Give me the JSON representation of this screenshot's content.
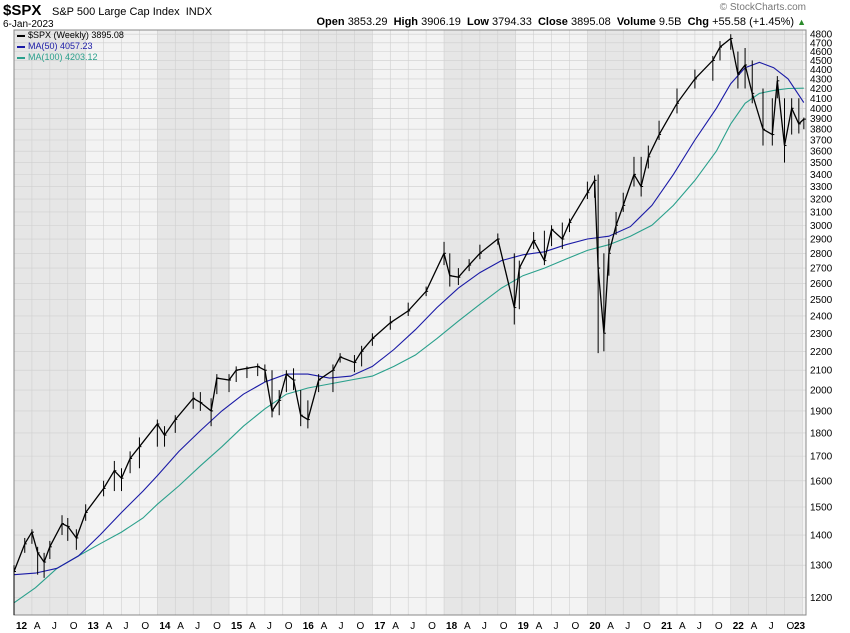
{
  "header": {
    "symbol": "$SPX",
    "name": "S&P 500 Large Cap Index",
    "exchange": "INDX",
    "date": "6-Jan-2023",
    "brand": "© StockCharts.com",
    "open_label": "Open",
    "open": "3853.29",
    "high_label": "High",
    "high": "3906.19",
    "low_label": "Low",
    "low": "3794.33",
    "close_label": "Close",
    "close": "3895.08",
    "volume_label": "Volume",
    "volume": "9.5B",
    "chg_label": "Chg",
    "chg": "+55.58 (+1.45%)"
  },
  "legend": [
    {
      "text": "$SPX (Weekly) 3895.08",
      "color": "#000000"
    },
    {
      "text": "MA(50) 4057.23",
      "color": "#1a1aa6"
    },
    {
      "text": "MA(100) 4203.12",
      "color": "#2aa08c"
    }
  ],
  "colors": {
    "price": "#000000",
    "ma50": "#1a1aa6",
    "ma100": "#2aa08c",
    "band_a": "#e6e6e6",
    "band_b": "#f3f3f3",
    "grid": "#cfcfcf"
  },
  "chart_data": {
    "type": "line",
    "title": "$SPX S&P 500 Large Cap Index",
    "y_scale": "log",
    "ylim": [
      1150,
      4850
    ],
    "xlim": [
      2012.0,
      2023.05
    ],
    "grid": true,
    "legend_position": "top-left",
    "y_ticks": [
      1200,
      1300,
      1400,
      1500,
      1600,
      1700,
      1800,
      1900,
      2000,
      2100,
      2200,
      2300,
      2400,
      2500,
      2600,
      2700,
      2800,
      2900,
      3000,
      3100,
      3200,
      3300,
      3400,
      3500,
      3600,
      3700,
      3800,
      3900,
      4000,
      4100,
      4200,
      4300,
      4400,
      4500,
      4600,
      4700,
      4800
    ],
    "x_ticks": [
      {
        "x": 2012.0,
        "label": "12",
        "year": true
      },
      {
        "x": 2012.25,
        "label": "A"
      },
      {
        "x": 2012.5,
        "label": "J"
      },
      {
        "x": 2012.75,
        "label": "O"
      },
      {
        "x": 2013.0,
        "label": "13",
        "year": true
      },
      {
        "x": 2013.25,
        "label": "A"
      },
      {
        "x": 2013.5,
        "label": "J"
      },
      {
        "x": 2013.75,
        "label": "O"
      },
      {
        "x": 2014.0,
        "label": "14",
        "year": true
      },
      {
        "x": 2014.25,
        "label": "A"
      },
      {
        "x": 2014.5,
        "label": "J"
      },
      {
        "x": 2014.75,
        "label": "O"
      },
      {
        "x": 2015.0,
        "label": "15",
        "year": true
      },
      {
        "x": 2015.25,
        "label": "A"
      },
      {
        "x": 2015.5,
        "label": "J"
      },
      {
        "x": 2015.75,
        "label": "O"
      },
      {
        "x": 2016.0,
        "label": "16",
        "year": true
      },
      {
        "x": 2016.25,
        "label": "A"
      },
      {
        "x": 2016.5,
        "label": "J"
      },
      {
        "x": 2016.75,
        "label": "O"
      },
      {
        "x": 2017.0,
        "label": "17",
        "year": true
      },
      {
        "x": 2017.25,
        "label": "A"
      },
      {
        "x": 2017.5,
        "label": "J"
      },
      {
        "x": 2017.75,
        "label": "O"
      },
      {
        "x": 2018.0,
        "label": "18",
        "year": true
      },
      {
        "x": 2018.25,
        "label": "A"
      },
      {
        "x": 2018.5,
        "label": "J"
      },
      {
        "x": 2018.75,
        "label": "O"
      },
      {
        "x": 2019.0,
        "label": "19",
        "year": true
      },
      {
        "x": 2019.25,
        "label": "A"
      },
      {
        "x": 2019.5,
        "label": "J"
      },
      {
        "x": 2019.75,
        "label": "O"
      },
      {
        "x": 2020.0,
        "label": "20",
        "year": true
      },
      {
        "x": 2020.25,
        "label": "A"
      },
      {
        "x": 2020.5,
        "label": "J"
      },
      {
        "x": 2020.75,
        "label": "O"
      },
      {
        "x": 2021.0,
        "label": "21",
        "year": true
      },
      {
        "x": 2021.25,
        "label": "A"
      },
      {
        "x": 2021.5,
        "label": "J"
      },
      {
        "x": 2021.75,
        "label": "O"
      },
      {
        "x": 2022.0,
        "label": "22",
        "year": true
      },
      {
        "x": 2022.25,
        "label": "A"
      },
      {
        "x": 2022.5,
        "label": "J"
      },
      {
        "x": 2022.75,
        "label": "O"
      },
      {
        "x": 2023.0,
        "label": "23",
        "year": true
      }
    ],
    "series": [
      {
        "name": "$SPX (Weekly)",
        "style": "ohlc",
        "x": [
          2012.0,
          2012.15,
          2012.25,
          2012.33,
          2012.42,
          2012.5,
          2012.67,
          2012.75,
          2012.87,
          2013.0,
          2013.25,
          2013.4,
          2013.5,
          2013.62,
          2013.75,
          2014.0,
          2014.1,
          2014.25,
          2014.5,
          2014.6,
          2014.75,
          2014.83,
          2015.0,
          2015.1,
          2015.25,
          2015.4,
          2015.5,
          2015.6,
          2015.7,
          2015.8,
          2015.9,
          2016.0,
          2016.1,
          2016.25,
          2016.45,
          2016.55,
          2016.75,
          2016.85,
          2017.0,
          2017.25,
          2017.5,
          2017.75,
          2018.0,
          2018.08,
          2018.2,
          2018.35,
          2018.5,
          2018.75,
          2018.98,
          2019.05,
          2019.25,
          2019.4,
          2019.5,
          2019.65,
          2019.75,
          2020.0,
          2020.1,
          2020.15,
          2020.23,
          2020.3,
          2020.4,
          2020.5,
          2020.65,
          2020.75,
          2020.85,
          2021.0,
          2021.25,
          2021.5,
          2021.75,
          2021.85,
          2022.0,
          2022.1,
          2022.2,
          2022.3,
          2022.45,
          2022.58,
          2022.65,
          2022.75,
          2022.85,
          2022.95,
          2023.02
        ],
        "values": [
          1280,
          1370,
          1410,
          1340,
          1310,
          1360,
          1440,
          1430,
          1390,
          1480,
          1570,
          1640,
          1610,
          1690,
          1740,
          1840,
          1790,
          1860,
          1960,
          1940,
          1900,
          2060,
          2050,
          2100,
          2110,
          2120,
          2100,
          1900,
          1950,
          2080,
          2050,
          1880,
          1860,
          2050,
          2100,
          2170,
          2140,
          2200,
          2270,
          2360,
          2430,
          2550,
          2800,
          2650,
          2640,
          2720,
          2800,
          2900,
          2450,
          2700,
          2890,
          2750,
          2970,
          2900,
          3020,
          3250,
          3350,
          2700,
          2300,
          2800,
          3000,
          3150,
          3400,
          3300,
          3550,
          3750,
          4050,
          4300,
          4500,
          4650,
          4750,
          4350,
          4450,
          4150,
          3800,
          3750,
          4280,
          3650,
          4000,
          3850,
          3895
        ],
        "high": [
          1300,
          1390,
          1420,
          1360,
          1340,
          1380,
          1470,
          1460,
          1420,
          1510,
          1600,
          1680,
          1650,
          1720,
          1780,
          1860,
          1830,
          1880,
          1990,
          1990,
          1960,
          2080,
          2080,
          2120,
          2120,
          2135,
          2130,
          2100,
          2000,
          2100,
          2110,
          2000,
          1950,
          2080,
          2130,
          2190,
          2180,
          2230,
          2300,
          2400,
          2480,
          2580,
          2880,
          2800,
          2700,
          2760,
          2860,
          2940,
          2800,
          2750,
          2950,
          2960,
          3000,
          3020,
          3050,
          3340,
          3390,
          3400,
          2800,
          2900,
          3100,
          3250,
          3550,
          3550,
          3650,
          3880,
          4200,
          4400,
          4550,
          4720,
          4800,
          4600,
          4640,
          4500,
          4200,
          4100,
          4330,
          4100,
          4100,
          4100,
          3910
        ],
        "low": [
          1150,
          1340,
          1370,
          1270,
          1260,
          1320,
          1400,
          1380,
          1350,
          1450,
          1540,
          1560,
          1560,
          1630,
          1650,
          1740,
          1740,
          1800,
          1910,
          1900,
          1830,
          1980,
          1990,
          2040,
          2060,
          2070,
          2040,
          1870,
          1880,
          1990,
          2000,
          1830,
          1820,
          1990,
          1990,
          2140,
          2090,
          2120,
          2230,
          2320,
          2400,
          2520,
          2720,
          2580,
          2590,
          2680,
          2760,
          2860,
          2350,
          2440,
          2830,
          2720,
          2850,
          2830,
          2950,
          3200,
          3210,
          2190,
          2200,
          2650,
          2930,
          3100,
          3300,
          3220,
          3450,
          3700,
          3950,
          4200,
          4280,
          4500,
          4620,
          4200,
          4200,
          4050,
          3650,
          3650,
          4100,
          3500,
          3750,
          3760,
          3800
        ]
      },
      {
        "name": "MA(50)",
        "style": "line",
        "x": [
          2012.0,
          2012.3,
          2012.6,
          2012.9,
          2013.2,
          2013.5,
          2013.8,
          2014.0,
          2014.3,
          2014.6,
          2014.9,
          2015.2,
          2015.5,
          2015.8,
          2016.1,
          2016.4,
          2016.7,
          2017.0,
          2017.3,
          2017.6,
          2017.9,
          2018.2,
          2018.5,
          2018.8,
          2019.1,
          2019.4,
          2019.7,
          2020.0,
          2020.3,
          2020.6,
          2020.9,
          2021.2,
          2021.5,
          2021.8,
          2022.0,
          2022.2,
          2022.4,
          2022.6,
          2022.8,
          2023.02
        ],
        "values": [
          1270,
          1275,
          1290,
          1330,
          1400,
          1480,
          1560,
          1620,
          1720,
          1810,
          1900,
          1980,
          2040,
          2080,
          2080,
          2060,
          2070,
          2120,
          2210,
          2320,
          2450,
          2570,
          2670,
          2750,
          2790,
          2810,
          2860,
          2900,
          2920,
          2990,
          3150,
          3400,
          3700,
          4000,
          4250,
          4420,
          4480,
          4420,
          4300,
          4057
        ]
      },
      {
        "name": "MA(100)",
        "style": "line",
        "x": [
          2012.0,
          2012.3,
          2012.6,
          2012.9,
          2013.2,
          2013.5,
          2013.8,
          2014.0,
          2014.3,
          2014.6,
          2014.9,
          2015.2,
          2015.5,
          2015.8,
          2016.1,
          2016.4,
          2016.7,
          2017.0,
          2017.3,
          2017.6,
          2017.9,
          2018.2,
          2018.5,
          2018.8,
          2019.1,
          2019.4,
          2019.7,
          2020.0,
          2020.3,
          2020.6,
          2020.9,
          2021.2,
          2021.5,
          2021.8,
          2022.0,
          2022.2,
          2022.4,
          2022.6,
          2022.8,
          2023.02
        ],
        "values": [
          1185,
          1230,
          1290,
          1330,
          1370,
          1410,
          1460,
          1510,
          1580,
          1660,
          1740,
          1830,
          1910,
          1980,
          2010,
          2030,
          2050,
          2070,
          2120,
          2180,
          2270,
          2370,
          2470,
          2570,
          2650,
          2700,
          2760,
          2820,
          2860,
          2920,
          3000,
          3150,
          3350,
          3600,
          3850,
          4050,
          4150,
          4180,
          4200,
          4203
        ]
      }
    ]
  }
}
